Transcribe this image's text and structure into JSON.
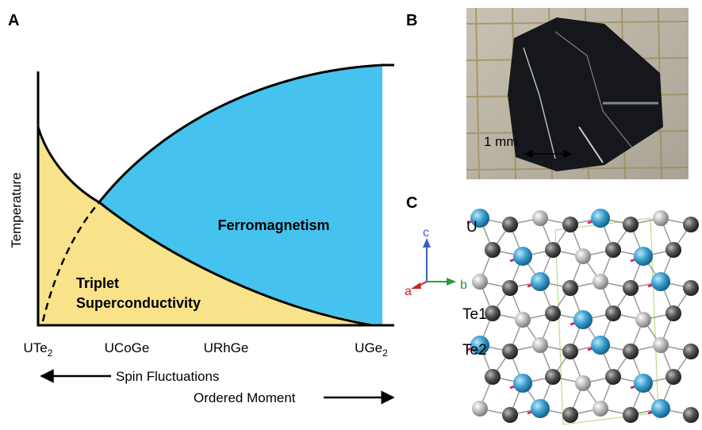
{
  "panel_a": {
    "label": "A",
    "axis_label": "Temperature",
    "ferromagnetism": "Ferromagnetism",
    "triplet": [
      "Triplet",
      "Superconductivity"
    ],
    "compounds": [
      {
        "name": "UTe",
        "sub": "2"
      },
      {
        "name": "UCoGe"
      },
      {
        "name": "URhGe"
      },
      {
        "name": "UGe",
        "sub": "2"
      }
    ],
    "arrows": [
      "Spin Fluctuations",
      "Ordered Moment"
    ]
  },
  "panel_b": {
    "label": "B",
    "scale": "1 mm"
  },
  "panel_c": {
    "label": "C",
    "atoms": [
      "U",
      "Te1",
      "Te2"
    ],
    "axes": [
      "a",
      "b",
      "c"
    ]
  }
}
